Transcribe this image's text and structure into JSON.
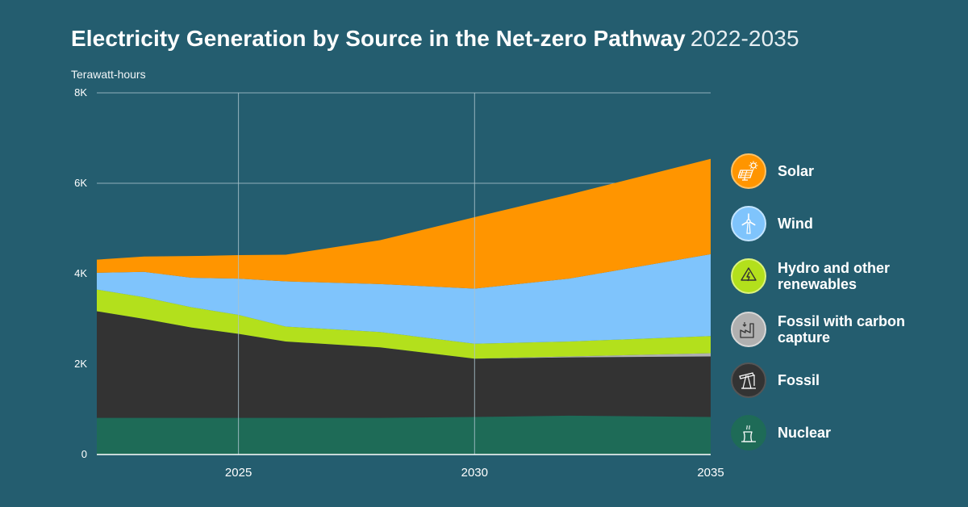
{
  "header": {
    "title": "Electricity Generation by Source in the Net-zero Pathway",
    "subtitle": "2022-2035"
  },
  "chart_data": {
    "type": "area",
    "stacked": true,
    "title": "Electricity Generation by Source in the Net-zero Pathway",
    "subtitle": "2022-2035",
    "ylabel": "Terawatt-hours",
    "xlabel": "",
    "x": [
      2022,
      2023,
      2024,
      2025,
      2026,
      2028,
      2030,
      2032,
      2035
    ],
    "xlim": [
      2022,
      2035
    ],
    "ylim": [
      0,
      8000
    ],
    "x_ticks": [
      "2025",
      "2030",
      "2035"
    ],
    "y_ticks": [
      "0",
      "2K",
      "4K",
      "6K",
      "8K"
    ],
    "grid": true,
    "legend_position": "right",
    "series": [
      {
        "name": "Nuclear",
        "color": "#1e6b57",
        "values": [
          810,
          810,
          810,
          810,
          810,
          810,
          830,
          860,
          830
        ]
      },
      {
        "name": "Fossil",
        "color": "#333333",
        "values": [
          2360,
          2190,
          2000,
          1860,
          1690,
          1560,
          1290,
          1290,
          1340
        ]
      },
      {
        "name": "Fossil with carbon capture",
        "color": "#b0b0b0",
        "values": [
          0,
          0,
          0,
          0,
          0,
          0,
          0,
          20,
          70
        ]
      },
      {
        "name": "Hydro and other renewables",
        "color": "#b3e01c",
        "values": [
          480,
          480,
          450,
          420,
          330,
          340,
          330,
          330,
          380
        ]
      },
      {
        "name": "Wind",
        "color": "#7fc4fc",
        "values": [
          370,
          560,
          650,
          800,
          1000,
          1060,
          1220,
          1390,
          1810
        ]
      },
      {
        "name": "Solar",
        "color": "#ff9500",
        "values": [
          290,
          340,
          480,
          520,
          590,
          970,
          1580,
          1860,
          2110
        ]
      }
    ]
  },
  "legend": [
    {
      "label": "Solar",
      "icon": "solar-panel-icon",
      "color": "#ff9500"
    },
    {
      "label": "Wind",
      "icon": "wind-turbine-icon",
      "color": "#7fc4fc"
    },
    {
      "label": "Hydro and other renewables",
      "icon": "recycle-lightning-icon",
      "color": "#b3e01c"
    },
    {
      "label": "Fossil with carbon capture",
      "icon": "carbon-capture-factory-icon",
      "color": "#b0b0b0"
    },
    {
      "label": "Fossil",
      "icon": "oil-pump-icon",
      "color": "#333333"
    },
    {
      "label": "Nuclear",
      "icon": "cooling-tower-icon",
      "color": "#1e6b57"
    }
  ]
}
